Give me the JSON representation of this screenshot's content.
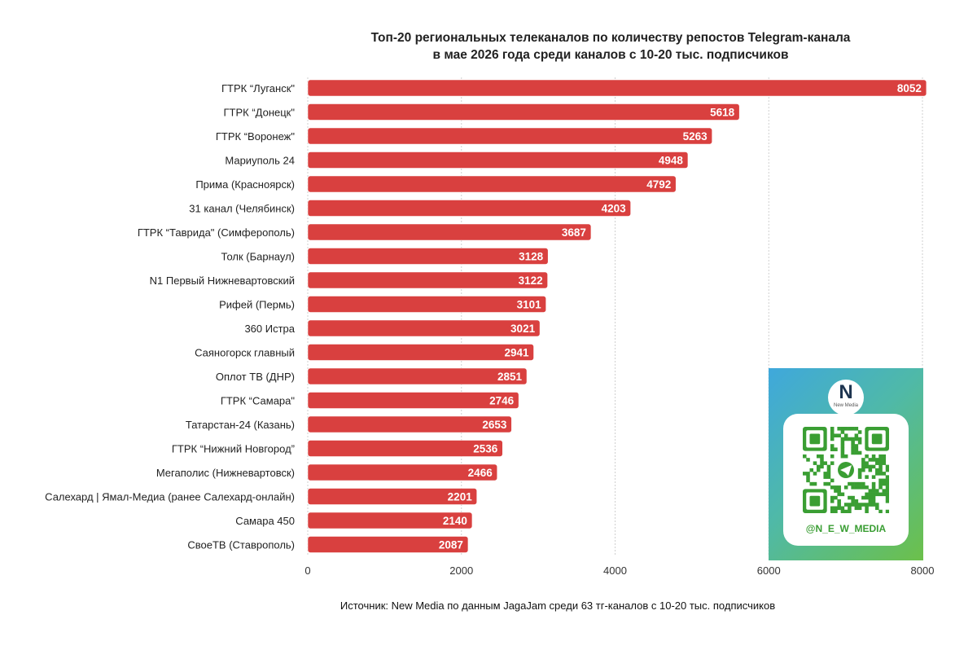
{
  "chart_data": {
    "type": "bar",
    "orientation": "horizontal",
    "title_lines": [
      "Топ-20 региональных телеканалов по количеству репостов Telegram-канала",
      "в мае 2026 года среди каналов с 10-20 тыс. подписчиков"
    ],
    "categories": [
      "ГТРК “Луганск\"",
      "ГТРК “Донецк\"",
      "ГТРК “Воронеж\"",
      "Мариуполь 24",
      "Прима (Красноярск)",
      "31 канал (Челябинск)",
      "ГТРК “Таврида\" (Симферополь)",
      "Толк (Барнаул)",
      "N1 Первый Нижневартовский",
      "Рифей (Пермь)",
      "360 Истра",
      "Саяногорск главный",
      "Оплот ТВ (ДНР)",
      "ГТРК “Самара\"",
      "Татарстан-24 (Казань)",
      "ГТРК “Нижний Новгород”",
      "Мегаполис (Нижневартовск)",
      "Салехард | Ямал-Медиа (ранее Салехард-онлайн)",
      "Самара 450",
      "СвоеТВ (Ставрополь)"
    ],
    "values": [
      8052,
      5618,
      5263,
      4948,
      4792,
      4203,
      3687,
      3128,
      3122,
      3101,
      3021,
      2941,
      2851,
      2746,
      2653,
      2536,
      2466,
      2201,
      2140,
      2087
    ],
    "xlim": [
      0,
      8000
    ],
    "xticks": [
      0,
      2000,
      4000,
      6000,
      8000
    ],
    "grid": "vertical",
    "bar_color": "#d9403f"
  },
  "source_note": "Источник: New Media по данным JagaJam среди 63 тг-каналов с 10-20 тыс. подписчиков",
  "promo": {
    "logo_mark": "N",
    "logo_text": "New Media",
    "qr_icon": "qr-code-icon",
    "handle": "@N_E_W_MEDIA"
  }
}
